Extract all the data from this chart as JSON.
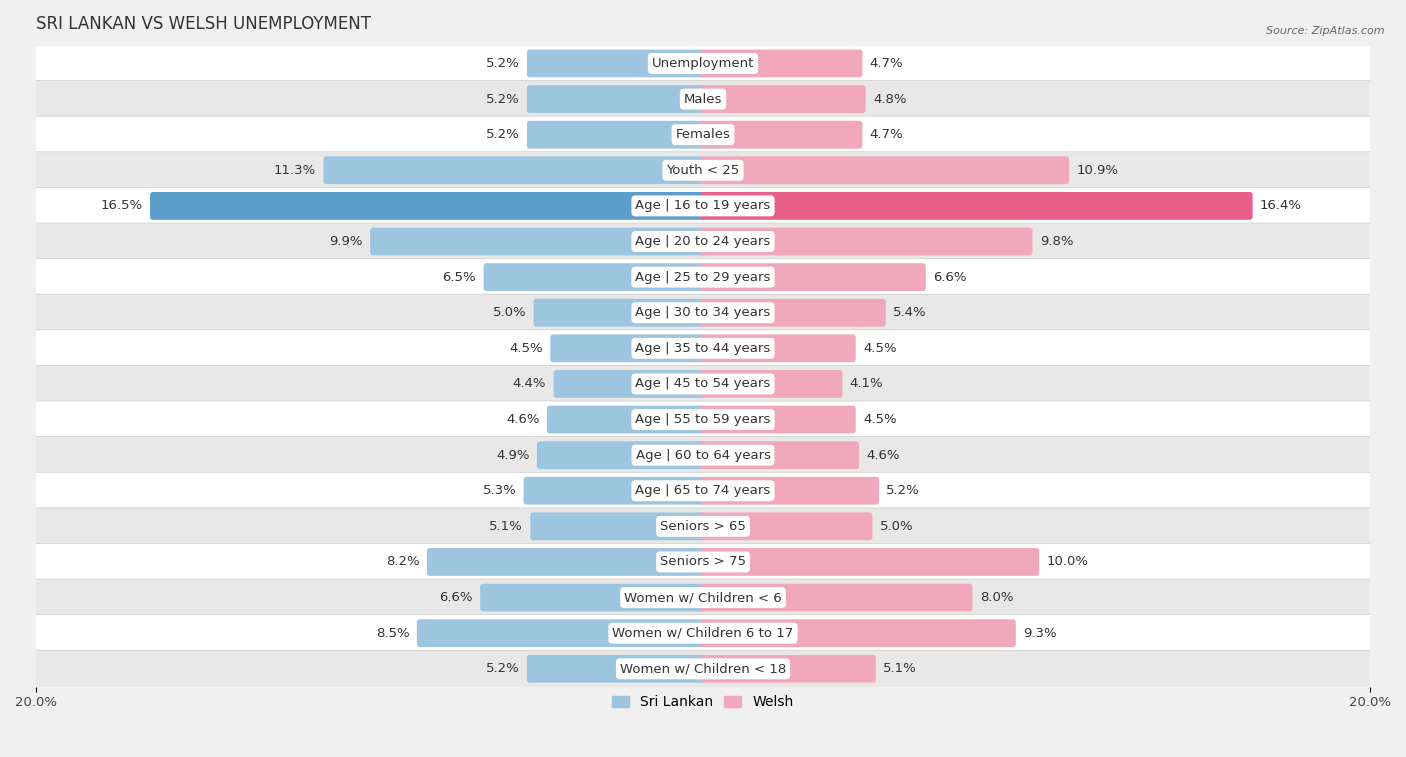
{
  "title": "SRI LANKAN VS WELSH UNEMPLOYMENT",
  "source": "Source: ZipAtlas.com",
  "categories": [
    "Unemployment",
    "Males",
    "Females",
    "Youth < 25",
    "Age | 16 to 19 years",
    "Age | 20 to 24 years",
    "Age | 25 to 29 years",
    "Age | 30 to 34 years",
    "Age | 35 to 44 years",
    "Age | 45 to 54 years",
    "Age | 55 to 59 years",
    "Age | 60 to 64 years",
    "Age | 65 to 74 years",
    "Seniors > 65",
    "Seniors > 75",
    "Women w/ Children < 6",
    "Women w/ Children 6 to 17",
    "Women w/ Children < 18"
  ],
  "sri_lankan": [
    5.2,
    5.2,
    5.2,
    11.3,
    16.5,
    9.9,
    6.5,
    5.0,
    4.5,
    4.4,
    4.6,
    4.9,
    5.3,
    5.1,
    8.2,
    6.6,
    8.5,
    5.2
  ],
  "welsh": [
    4.7,
    4.8,
    4.7,
    10.9,
    16.4,
    9.8,
    6.6,
    5.4,
    4.5,
    4.1,
    4.5,
    4.6,
    5.2,
    5.0,
    10.0,
    8.0,
    9.3,
    5.1
  ],
  "sri_lankan_color": "#9ec5e0",
  "welsh_color": "#f2a8bc",
  "highlight_sri_lankan_color": "#5b9ec9",
  "highlight_welsh_color": "#e8608a",
  "highlight_row": 4,
  "max_val": 20.0,
  "bg_color": "#f0f0f0",
  "row_bg_light": "#ffffff",
  "row_bg_dark": "#e8e8e8",
  "bar_height": 0.62,
  "label_fontsize": 9.5,
  "category_fontsize": 9.5,
  "title_fontsize": 12,
  "legend_fontsize": 10,
  "value_fontsize": 9.5
}
